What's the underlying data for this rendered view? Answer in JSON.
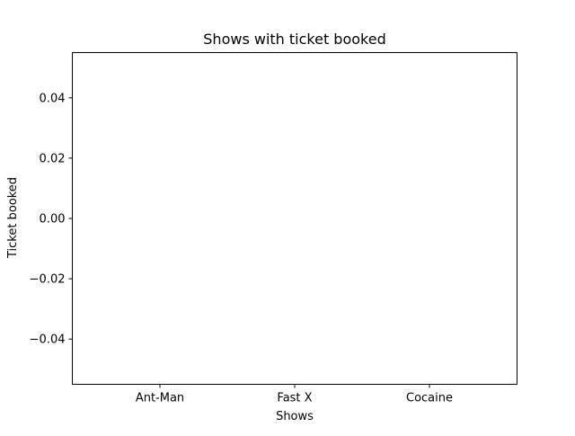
{
  "chart_data": {
    "type": "bar",
    "title": "Shows with ticket booked",
    "xlabel": "Shows",
    "ylabel": "Ticket booked",
    "categories": [
      "Ant-Man",
      "Fast X",
      "Cocaine"
    ],
    "values": [
      0,
      0,
      0
    ],
    "ylim": [
      -0.055,
      0.055
    ],
    "yticks": [
      -0.04,
      -0.02,
      0.0,
      0.02,
      0.04
    ],
    "ytick_labels": [
      "−0.04",
      "−0.02",
      "0.00",
      "0.02",
      "0.04"
    ],
    "grid": false,
    "bar_color": "#1f77b4"
  }
}
